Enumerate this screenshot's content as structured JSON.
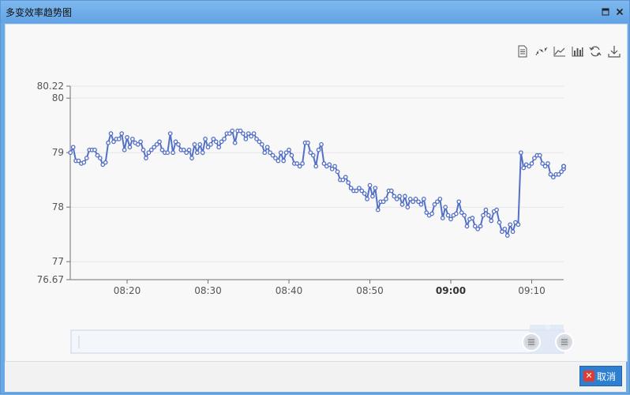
{
  "window": {
    "title": "多变效率趋势图",
    "maximize_icon": "maximize-icon",
    "close_icon": "close-icon"
  },
  "toolbox": [
    {
      "name": "data-view-icon",
      "title": "数据视图"
    },
    {
      "name": "scatter-icon",
      "title": "散点图"
    },
    {
      "name": "line-chart-icon",
      "title": "折线图"
    },
    {
      "name": "bar-chart-icon",
      "title": "柱状图"
    },
    {
      "name": "restore-icon",
      "title": "还原"
    },
    {
      "name": "save-image-icon",
      "title": "保存为图片"
    }
  ],
  "footer": {
    "cancel_label": "取消",
    "cancel_icon": "cancel-icon"
  },
  "chart_data": {
    "type": "line",
    "title": "",
    "xlabel": "",
    "ylabel": "",
    "ylim": [
      76.67,
      80.22
    ],
    "yticks": [
      "76.67",
      "77",
      "78",
      "79",
      "80",
      "80.22"
    ],
    "xticks": [
      "08:20",
      "08:30",
      "08:40",
      "08:50",
      "09:00",
      "09:10"
    ],
    "x_start_minute": "08:13",
    "series_color": "#5470c6",
    "grid": true,
    "datazoom": {
      "start_percent": 92,
      "end_percent": 100
    },
    "series": [
      {
        "values": [
          79.0,
          79.1,
          78.85,
          78.85,
          78.8,
          78.82,
          78.9,
          79.05,
          79.05,
          79.05,
          78.95,
          78.9,
          78.78,
          78.82,
          79.18,
          79.35,
          79.2,
          79.25,
          79.25,
          79.35,
          79.05,
          79.28,
          79.1,
          79.25,
          79.18,
          79.15,
          79.2,
          79.05,
          78.9,
          79.0,
          79.05,
          79.1,
          79.15,
          79.2,
          79.05,
          79.0,
          79.0,
          79.35,
          79.0,
          79.2,
          79.15,
          79.05,
          79.05,
          79.0,
          79.05,
          78.9,
          79.15,
          79.0,
          79.15,
          79.0,
          79.25,
          79.1,
          79.15,
          79.25,
          79.2,
          79.1,
          79.2,
          79.25,
          79.35,
          79.35,
          79.4,
          79.18,
          79.4,
          79.4,
          79.35,
          79.25,
          79.35,
          79.3,
          79.35,
          79.25,
          79.2,
          79.15,
          79.0,
          79.1,
          79.0,
          78.95,
          78.9,
          78.85,
          79.0,
          78.85,
          79.0,
          79.05,
          78.95,
          78.8,
          78.8,
          78.75,
          78.8,
          79.18,
          79.18,
          79.0,
          78.95,
          78.75,
          79.05,
          79.15,
          78.8,
          78.75,
          78.78,
          78.7,
          78.75,
          78.65,
          78.5,
          78.5,
          78.55,
          78.45,
          78.35,
          78.3,
          78.3,
          78.35,
          78.3,
          78.25,
          78.15,
          78.4,
          78.2,
          78.35,
          77.95,
          78.1,
          78.1,
          78.15,
          78.3,
          78.3,
          78.2,
          78.15,
          78.2,
          78.05,
          78.2,
          78.0,
          78.15,
          78.1,
          78.15,
          78.1,
          78.05,
          78.15,
          77.9,
          77.85,
          77.88,
          78.05,
          78.1,
          78.15,
          77.8,
          78.0,
          77.85,
          77.78,
          77.85,
          77.88,
          78.1,
          77.9,
          77.85,
          77.65,
          77.78,
          77.8,
          77.65,
          77.6,
          77.65,
          77.85,
          77.95,
          77.85,
          77.75,
          77.92,
          77.95,
          77.72,
          77.55,
          77.6,
          77.48,
          77.68,
          77.55,
          77.72,
          77.68,
          79.0,
          78.72,
          78.78,
          78.75,
          78.8,
          78.9,
          78.95,
          78.95,
          78.8,
          78.75,
          78.8,
          78.6,
          78.55,
          78.6,
          78.6,
          78.65,
          78.7,
          78.7,
          78.75,
          78.75,
          78.75,
          78.75,
          78.75
        ]
      }
    ]
  }
}
